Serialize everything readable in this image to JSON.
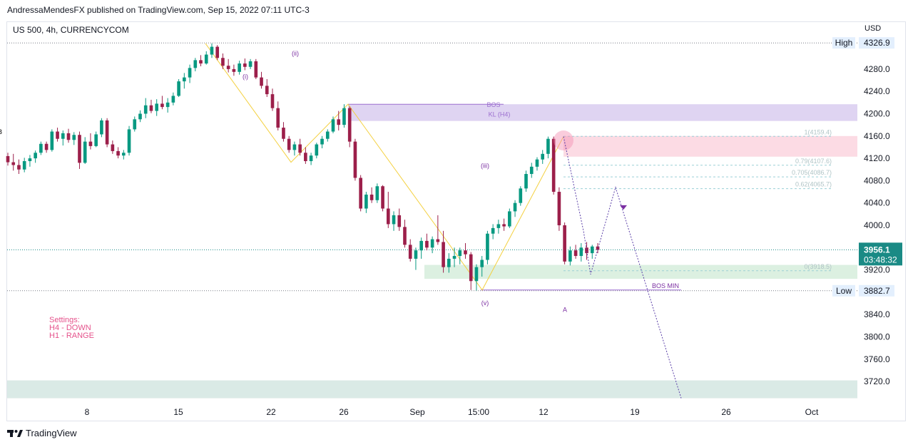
{
  "header": {
    "published": "AndressaMendesFX published on TradingView.com, Sep 15, 2022 07:11 UTC-3"
  },
  "symbol_line": "US 500, 4h, CURRENCYCOM",
  "currency": "USD",
  "footer": {
    "brand": "TradingView",
    "logo_icon": "tradingview-logo-icon"
  },
  "settings": {
    "title": "Settings:",
    "line1": "H4 - DOWN",
    "line2": "H1 - RANGE"
  },
  "colors": {
    "up": "#089981",
    "down": "#9c1f4a",
    "zone_bos": "#d9cdf0",
    "zone_b": "#fbd5df",
    "zone_green": "#d6eddc",
    "zone_bottom": "#d3e6e2",
    "price_tag": "#1a8a85",
    "fib_line": "#9bd0d6",
    "wave_label": "#7b2fa2",
    "trend_line": "#f4d03f"
  },
  "chart_data": {
    "type": "candlestick",
    "symbol": "US 500",
    "timeframe": "4h",
    "y_axis": {
      "ticks": [
        4280.0,
        4240.0,
        4200.0,
        4160.0,
        4120.0,
        4080.0,
        4040.0,
        4000.0,
        3920.0,
        3840.0,
        3800.0,
        3760.0,
        3720.0
      ],
      "ylim": [
        3690,
        4340
      ]
    },
    "x_axis": {
      "ticks": [
        "8",
        "15",
        "22",
        "26",
        "Sep",
        "15:00",
        "12",
        "19",
        "26",
        "Oct"
      ]
    },
    "high": {
      "label": "High",
      "value": "4326.9"
    },
    "low": {
      "label": "Low",
      "value": "3882.7"
    },
    "last_price": {
      "value": "3956.1",
      "countdown": "03:48:32"
    },
    "fib_levels": [
      {
        "label": "1(4159.4)",
        "value": 4159.4
      },
      {
        "label": "0.79(4107.6)",
        "value": 4107.6
      },
      {
        "label": "0.705(4086.7)",
        "value": 4086.7
      },
      {
        "label": "0.62(4065.7)",
        "value": 4065.7
      },
      {
        "label": "0(3918.5)",
        "value": 3918.5
      }
    ],
    "zones": [
      {
        "name": "KL (H4)",
        "top": 4217,
        "bottom": 4187
      },
      {
        "name": "B",
        "top": 4160,
        "bottom": 4123
      },
      {
        "name": "",
        "top": 3929,
        "bottom": 3904
      },
      {
        "name": "",
        "top": 3722,
        "bottom": 3690
      }
    ],
    "annotations": [
      {
        "text": "BOS",
        "value": 4217
      },
      {
        "text": "KL (H4)",
        "value": 4200
      },
      {
        "text": "BOS MIN",
        "value": 3884
      },
      {
        "text": "(i)",
        "value": 4268
      },
      {
        "text": "(ii)",
        "value": 4309
      },
      {
        "text": "(iii)",
        "value": 4108
      },
      {
        "text": "(v)",
        "value": 3862
      },
      {
        "text": "A",
        "value": 3850
      },
      {
        "text": "B",
        "value": 4169
      }
    ],
    "candles": [
      [
        4124,
        4130,
        4107,
        4113
      ],
      [
        4113,
        4128,
        4098,
        4108
      ],
      [
        4108,
        4118,
        4092,
        4100
      ],
      [
        4100,
        4121,
        4095,
        4115
      ],
      [
        4115,
        4126,
        4105,
        4120
      ],
      [
        4120,
        4134,
        4112,
        4130
      ],
      [
        4130,
        4150,
        4126,
        4146
      ],
      [
        4146,
        4150,
        4130,
        4135
      ],
      [
        4135,
        4172,
        4132,
        4168
      ],
      [
        4168,
        4175,
        4150,
        4155
      ],
      [
        4155,
        4170,
        4143,
        4165
      ],
      [
        4165,
        4173,
        4148,
        4153
      ],
      [
        4153,
        4167,
        4144,
        4162
      ],
      [
        4162,
        4168,
        4101,
        4112
      ],
      [
        4112,
        4158,
        4110,
        4150
      ],
      [
        4150,
        4165,
        4136,
        4142
      ],
      [
        4142,
        4168,
        4140,
        4163
      ],
      [
        4163,
        4192,
        4158,
        4188
      ],
      [
        4188,
        4192,
        4140,
        4145
      ],
      [
        4145,
        4152,
        4128,
        4133
      ],
      [
        4133,
        4140,
        4120,
        4125
      ],
      [
        4125,
        4135,
        4118,
        4130
      ],
      [
        4130,
        4178,
        4125,
        4172
      ],
      [
        4172,
        4195,
        4168,
        4190
      ],
      [
        4190,
        4206,
        4185,
        4200
      ],
      [
        4200,
        4228,
        4192,
        4215
      ],
      [
        4215,
        4225,
        4201,
        4205
      ],
      [
        4205,
        4226,
        4196,
        4218
      ],
      [
        4218,
        4232,
        4208,
        4212
      ],
      [
        4212,
        4228,
        4202,
        4220
      ],
      [
        4220,
        4238,
        4215,
        4232
      ],
      [
        4232,
        4262,
        4230,
        4258
      ],
      [
        4258,
        4273,
        4245,
        4265
      ],
      [
        4265,
        4288,
        4255,
        4282
      ],
      [
        4282,
        4300,
        4276,
        4296
      ],
      [
        4296,
        4305,
        4285,
        4290
      ],
      [
        4290,
        4312,
        4288,
        4306
      ],
      [
        4306,
        4326,
        4300,
        4320
      ],
      [
        4320,
        4323,
        4296,
        4300
      ],
      [
        4300,
        4308,
        4280,
        4286
      ],
      [
        4286,
        4298,
        4274,
        4280
      ],
      [
        4280,
        4288,
        4268,
        4275
      ],
      [
        4275,
        4295,
        4270,
        4290
      ],
      [
        4290,
        4299,
        4278,
        4284
      ],
      [
        4284,
        4298,
        4280,
        4294
      ],
      [
        4294,
        4298,
        4262,
        4265
      ],
      [
        4265,
        4275,
        4245,
        4250
      ],
      [
        4250,
        4262,
        4230,
        4235
      ],
      [
        4235,
        4245,
        4205,
        4210
      ],
      [
        4210,
        4222,
        4170,
        4175
      ],
      [
        4175,
        4185,
        4150,
        4155
      ],
      [
        4155,
        4160,
        4130,
        4135
      ],
      [
        4135,
        4150,
        4125,
        4145
      ],
      [
        4145,
        4155,
        4125,
        4130
      ],
      [
        4130,
        4140,
        4110,
        4115
      ],
      [
        4115,
        4130,
        4108,
        4125
      ],
      [
        4125,
        4148,
        4120,
        4145
      ],
      [
        4145,
        4160,
        4138,
        4155
      ],
      [
        4155,
        4172,
        4150,
        4168
      ],
      [
        4168,
        4195,
        4165,
        4190
      ],
      [
        4190,
        4205,
        4170,
        4180
      ],
      [
        4180,
        4217,
        4175,
        4210
      ],
      [
        4210,
        4213,
        4140,
        4150
      ],
      [
        4150,
        4155,
        4080,
        4085
      ],
      [
        4085,
        4090,
        4025,
        4030
      ],
      [
        4030,
        4060,
        4022,
        4055
      ],
      [
        4055,
        4068,
        4040,
        4045
      ],
      [
        4045,
        4075,
        4040,
        4070
      ],
      [
        4070,
        4072,
        4025,
        4030
      ],
      [
        4030,
        4060,
        3995,
        4002
      ],
      [
        4002,
        4025,
        3990,
        4018
      ],
      [
        4018,
        4030,
        3990,
        3997
      ],
      [
        3997,
        4010,
        3960,
        3965
      ],
      [
        3965,
        3975,
        3935,
        3940
      ],
      [
        3940,
        3960,
        3920,
        3955
      ],
      [
        3955,
        3978,
        3940,
        3972
      ],
      [
        3972,
        3985,
        3955,
        3960
      ],
      [
        3960,
        3980,
        3950,
        3975
      ],
      [
        3975,
        4018,
        3965,
        3970
      ],
      [
        3970,
        3990,
        3915,
        3925
      ],
      [
        3925,
        3950,
        3915,
        3940
      ],
      [
        3940,
        3960,
        3925,
        3945
      ],
      [
        3945,
        3960,
        3930,
        3955
      ],
      [
        3955,
        3968,
        3940,
        3948
      ],
      [
        3948,
        3952,
        3884,
        3900
      ],
      [
        3900,
        3930,
        3883,
        3925
      ],
      [
        3925,
        3945,
        3908,
        3938
      ],
      [
        3938,
        3990,
        3930,
        3985
      ],
      [
        3985,
        4002,
        3975,
        3995
      ],
      [
        3995,
        4010,
        3985,
        4002
      ],
      [
        4002,
        4012,
        3990,
        3998
      ],
      [
        3998,
        4030,
        3995,
        4025
      ],
      [
        4025,
        4045,
        4015,
        4040
      ],
      [
        4040,
        4070,
        4035,
        4066
      ],
      [
        4066,
        4098,
        4060,
        4092
      ],
      [
        4092,
        4112,
        4085,
        4105
      ],
      [
        4105,
        4122,
        4098,
        4118
      ],
      [
        4118,
        4135,
        4110,
        4128
      ],
      [
        4128,
        4159,
        4120,
        4155
      ],
      [
        4155,
        4159,
        4055,
        4060
      ],
      [
        4060,
        4068,
        3990,
        4000
      ],
      [
        4000,
        4005,
        3930,
        3935
      ],
      [
        3935,
        3962,
        3928,
        3955
      ],
      [
        3955,
        3965,
        3940,
        3945
      ],
      [
        3945,
        3968,
        3935,
        3960
      ],
      [
        3960,
        3970,
        3938,
        3950
      ],
      [
        3950,
        3965,
        3940,
        3962
      ],
      [
        3962,
        3968,
        3950,
        3956
      ]
    ]
  }
}
